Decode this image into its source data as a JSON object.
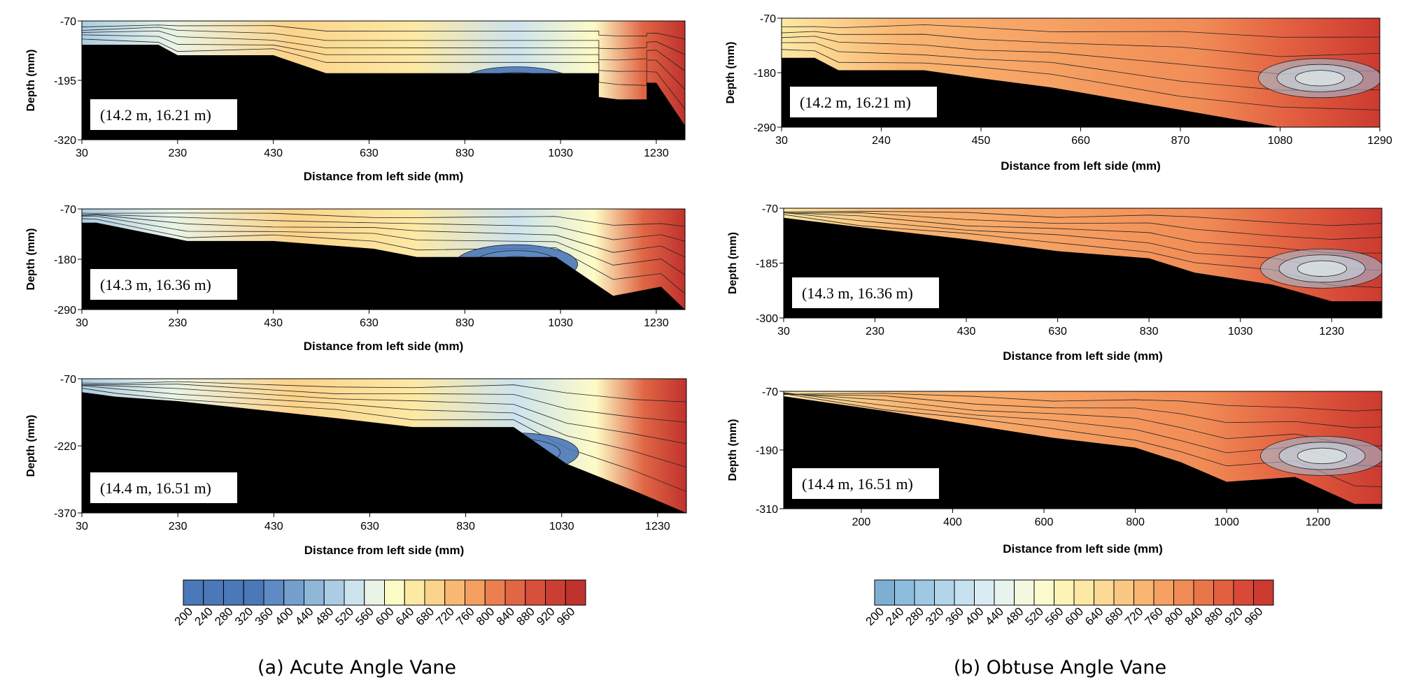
{
  "chart_data": [
    {
      "type": "heatmap",
      "group": "a",
      "title": "",
      "location_label": "(14.2 m, 16.21 m)",
      "xlabel": "Distance from left side (mm)",
      "ylabel": "Depth (mm)",
      "xlim": [
        30,
        1290
      ],
      "ylim": [
        -320,
        -70
      ],
      "x_ticks": [
        "30",
        "230",
        "430",
        "630",
        "830",
        "1030",
        "1230"
      ],
      "y_ticks": [
        "-70",
        "-195",
        "-320"
      ],
      "bed_profile": [
        [
          30,
          -120
        ],
        [
          190,
          -120
        ],
        [
          230,
          -142
        ],
        [
          430,
          -142
        ],
        [
          540,
          -180
        ],
        [
          1110,
          -180
        ],
        [
          1110,
          -230
        ],
        [
          1150,
          -235
        ],
        [
          1210,
          -235
        ],
        [
          1210,
          -200
        ],
        [
          1230,
          -200
        ],
        [
          1290,
          -290
        ]
      ]
    },
    {
      "type": "heatmap",
      "group": "a",
      "title": "",
      "location_label": "(14.3 m, 16.36 m)",
      "xlabel": "Distance from left side (mm)",
      "ylabel": "Depth (mm)",
      "xlim": [
        30,
        1290
      ],
      "ylim": [
        -290,
        -70
      ],
      "x_ticks": [
        "30",
        "230",
        "430",
        "630",
        "830",
        "1030",
        "1230"
      ],
      "y_ticks": [
        "-70",
        "-180",
        "-290"
      ],
      "bed_profile": [
        [
          30,
          -100
        ],
        [
          60,
          -100
        ],
        [
          250,
          -140
        ],
        [
          430,
          -140
        ],
        [
          640,
          -157
        ],
        [
          730,
          -175
        ],
        [
          1020,
          -175
        ],
        [
          1140,
          -260
        ],
        [
          1240,
          -240
        ],
        [
          1290,
          -290
        ]
      ]
    },
    {
      "type": "heatmap",
      "group": "a",
      "title": "",
      "location_label": "(14.4 m, 16.51 m)",
      "xlabel": "Distance from left side (mm)",
      "ylabel": "Depth (mm)",
      "xlim": [
        30,
        1290
      ],
      "ylim": [
        -370,
        -70
      ],
      "x_ticks": [
        "30",
        "230",
        "430",
        "630",
        "830",
        "1030",
        "1230"
      ],
      "y_ticks": [
        "-70",
        "-220",
        "-370"
      ],
      "bed_profile": [
        [
          30,
          -100
        ],
        [
          100,
          -110
        ],
        [
          230,
          -120
        ],
        [
          560,
          -158
        ],
        [
          720,
          -178
        ],
        [
          930,
          -178
        ],
        [
          1040,
          -260
        ],
        [
          1180,
          -320
        ],
        [
          1290,
          -370
        ]
      ]
    },
    {
      "type": "heatmap",
      "group": "b",
      "title": "",
      "location_label": "(14.2 m, 16.21 m)",
      "xlabel": "Distance from left side (mm)",
      "ylabel": "Depth (mm)",
      "xlim": [
        30,
        1290
      ],
      "ylim": [
        -290,
        -70
      ],
      "x_ticks": [
        "30",
        "240",
        "450",
        "660",
        "870",
        "1080",
        "1290"
      ],
      "y_ticks": [
        "-70",
        "-180",
        "-290"
      ],
      "bed_profile": [
        [
          30,
          -150
        ],
        [
          100,
          -150
        ],
        [
          150,
          -175
        ],
        [
          330,
          -175
        ],
        [
          440,
          -190
        ],
        [
          600,
          -210
        ],
        [
          870,
          -255
        ],
        [
          1080,
          -290
        ],
        [
          1290,
          -290
        ]
      ]
    },
    {
      "type": "heatmap",
      "group": "b",
      "title": "",
      "location_label": "(14.3 m, 16.36 m)",
      "xlabel": "Distance from left side (mm)",
      "ylabel": "Depth (mm)",
      "xlim": [
        30,
        1340
      ],
      "ylim": [
        -300,
        -70
      ],
      "x_ticks": [
        "30",
        "230",
        "430",
        "630",
        "830",
        "1030",
        "1230"
      ],
      "y_ticks": [
        "-70",
        "-185",
        "-300"
      ],
      "bed_profile": [
        [
          30,
          -90
        ],
        [
          200,
          -110
        ],
        [
          430,
          -135
        ],
        [
          630,
          -160
        ],
        [
          830,
          -175
        ],
        [
          930,
          -205
        ],
        [
          1100,
          -230
        ],
        [
          1230,
          -265
        ],
        [
          1340,
          -265
        ]
      ]
    },
    {
      "type": "heatmap",
      "group": "b",
      "title": "",
      "location_label": "(14.4 m, 16.51 m)",
      "xlabel": "Distance from left side (mm)",
      "ylabel": "Depth (mm)",
      "xlim": [
        30,
        1340
      ],
      "ylim": [
        -310,
        -70
      ],
      "x_ticks": [
        "200",
        "400",
        "600",
        "800",
        "1000",
        "1200"
      ],
      "y_ticks": [
        "-70",
        "-190",
        "-310"
      ],
      "bed_profile": [
        [
          30,
          -80
        ],
        [
          250,
          -110
        ],
        [
          450,
          -140
        ],
        [
          620,
          -165
        ],
        [
          800,
          -185
        ],
        [
          900,
          -215
        ],
        [
          1000,
          -255
        ],
        [
          1150,
          -245
        ],
        [
          1280,
          -300
        ],
        [
          1340,
          -300
        ]
      ]
    }
  ],
  "colorbars": {
    "a": {
      "ticks": [
        "200",
        "240",
        "280",
        "320",
        "360",
        "400",
        "440",
        "480",
        "520",
        "560",
        "600",
        "640",
        "680",
        "720",
        "760",
        "800",
        "840",
        "880",
        "920",
        "960"
      ],
      "colors": [
        "#4a78b8",
        "#4a78b8",
        "#4a78b8",
        "#4a78b8",
        "#5f8ac4",
        "#74a0ce",
        "#8fb7d9",
        "#acccE4",
        "#cde3ee",
        "#eaf4e6",
        "#fdfbc6",
        "#fde9a4",
        "#fcd38a",
        "#f9b974",
        "#f49e60",
        "#ec7f50",
        "#e06645",
        "#d6503c",
        "#cb3e33",
        "#c0322d"
      ]
    },
    "b": {
      "ticks": [
        "200",
        "240",
        "280",
        "320",
        "360",
        "400",
        "440",
        "480",
        "520",
        "560",
        "600",
        "640",
        "680",
        "720",
        "760",
        "800",
        "840",
        "880",
        "920",
        "960"
      ],
      "colors": [
        "#7eafd3",
        "#8ebcdc",
        "#9fc8e3",
        "#b2d5ea",
        "#c6e1ef",
        "#d9ecf3",
        "#e6f3ee",
        "#f3f8de",
        "#fcfbce",
        "#fef4b7",
        "#fde9a4",
        "#fcd994",
        "#fbc882",
        "#f9b571",
        "#f6a163",
        "#f18c56",
        "#ea7549",
        "#e25f40",
        "#d84a37",
        "#cc3a30"
      ]
    }
  },
  "captions": {
    "a": "(a) Acute Angle Vane",
    "b": "(b) Obtuse Angle Vane"
  }
}
